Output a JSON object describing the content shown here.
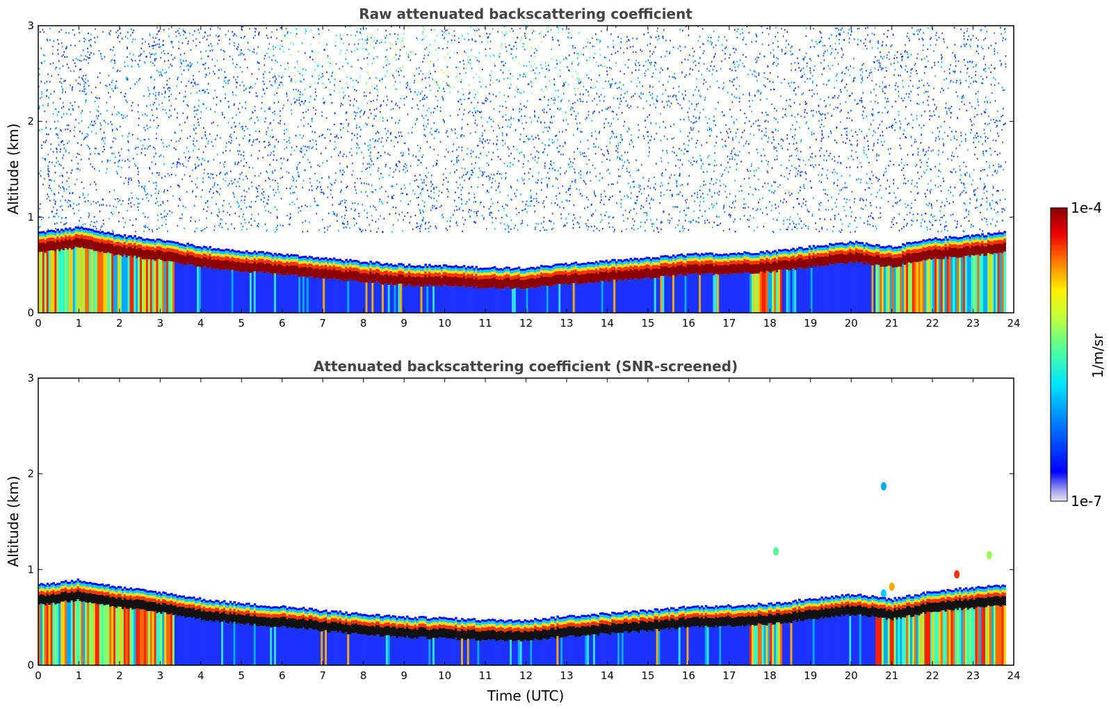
{
  "chart_data": [
    {
      "type": "heatmap",
      "title": "Raw attenuated backscattering coefficient",
      "xlabel": "",
      "ylabel": "Altitude (km)",
      "xlim": [
        0,
        24
      ],
      "ylim": [
        0,
        3
      ],
      "xticks": [
        "0",
        "1",
        "2",
        "3",
        "4",
        "5",
        "6",
        "7",
        "8",
        "9",
        "10",
        "11",
        "12",
        "13",
        "14",
        "15",
        "16",
        "17",
        "18",
        "19",
        "20",
        "21",
        "22",
        "23",
        "24"
      ],
      "yticks": [
        "0",
        "1",
        "2",
        "3"
      ],
      "grid": false,
      "log_color_scale": true,
      "layer_top_km": [
        [
          0,
          0.75
        ],
        [
          1,
          0.8
        ],
        [
          2,
          0.72
        ],
        [
          3,
          0.67
        ],
        [
          4,
          0.6
        ],
        [
          5,
          0.55
        ],
        [
          6,
          0.52
        ],
        [
          7,
          0.48
        ],
        [
          8,
          0.44
        ],
        [
          9,
          0.41
        ],
        [
          10,
          0.4
        ],
        [
          11,
          0.38
        ],
        [
          12,
          0.38
        ],
        [
          13,
          0.42
        ],
        [
          14,
          0.45
        ],
        [
          15,
          0.48
        ],
        [
          16,
          0.52
        ],
        [
          17,
          0.53
        ],
        [
          18,
          0.55
        ],
        [
          19,
          0.6
        ],
        [
          20,
          0.65
        ],
        [
          21,
          0.6
        ],
        [
          22,
          0.68
        ],
        [
          23,
          0.72
        ],
        [
          23.8,
          0.75
        ]
      ]
    },
    {
      "type": "heatmap",
      "title": "Attenuated backscattering coefficient (SNR-screened)",
      "xlabel": "Time (UTC)",
      "ylabel": "Altitude (km)",
      "xlim": [
        0,
        24
      ],
      "ylim": [
        0,
        3
      ],
      "xticks": [
        "0",
        "1",
        "2",
        "3",
        "4",
        "5",
        "6",
        "7",
        "8",
        "9",
        "10",
        "11",
        "12",
        "13",
        "14",
        "15",
        "16",
        "17",
        "18",
        "19",
        "20",
        "21",
        "22",
        "23",
        "24"
      ],
      "yticks": [
        "0",
        "1",
        "2",
        "3"
      ],
      "grid": false,
      "log_color_scale": true
    }
  ],
  "colorbar": {
    "label": "1/m/sr",
    "max_label": "1e-4",
    "min_label": "1e-7",
    "colormap": "jet",
    "colors": [
      "#e8e8f8",
      "#0000ff",
      "#00aaff",
      "#00ffff",
      "#aaff55",
      "#ffff00",
      "#ff8800",
      "#ff0000",
      "#880000"
    ]
  }
}
